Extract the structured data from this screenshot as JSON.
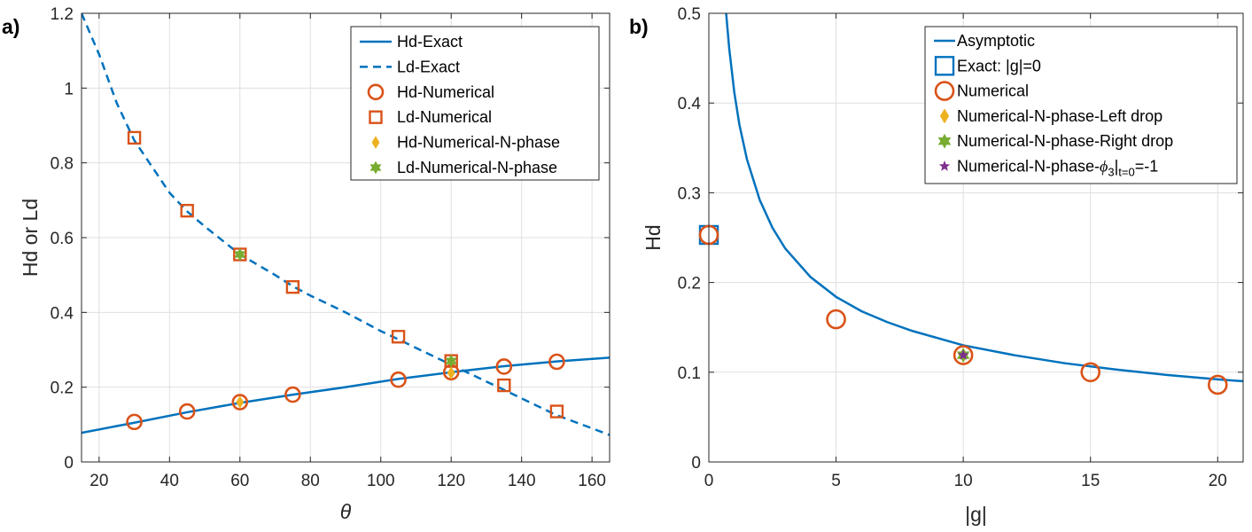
{
  "chart_data": [
    {
      "type": "line",
      "panel_label": "a)",
      "xlabel": "θ",
      "ylabel": "Hd or Ld",
      "xlim": [
        15,
        165
      ],
      "ylim": [
        0,
        1.2
      ],
      "xticks": [
        20,
        40,
        60,
        80,
        100,
        120,
        140,
        160
      ],
      "yticks": [
        0,
        0.2,
        0.4,
        0.6,
        0.8,
        1,
        1.2
      ],
      "xtick_labels": [
        "20",
        "40",
        "60",
        "80",
        "100",
        "120",
        "140",
        "160"
      ],
      "ytick_labels": [
        "0",
        "0.2",
        "0.4",
        "0.6",
        "0.8",
        "1",
        "1.2"
      ],
      "grid": true,
      "legend_position": "top-right",
      "series": [
        {
          "name": "Hd-Exact",
          "style": "solid-line",
          "color": "#0072BD",
          "x": [
            15,
            30,
            45,
            60,
            75,
            90,
            105,
            120,
            135,
            150,
            165
          ],
          "y": [
            0.078,
            0.105,
            0.133,
            0.158,
            0.18,
            0.2,
            0.222,
            0.24,
            0.256,
            0.269,
            0.279
          ]
        },
        {
          "name": "Ld-Exact",
          "style": "dashed-line",
          "color": "#0072BD",
          "x": [
            15,
            20,
            25,
            30,
            40,
            45,
            50,
            60,
            70,
            75,
            80,
            90,
            100,
            105,
            110,
            120,
            130,
            135,
            140,
            150,
            160,
            165
          ],
          "y": [
            1.2,
            1.09,
            0.96,
            0.86,
            0.72,
            0.67,
            0.63,
            0.555,
            0.5,
            0.47,
            0.445,
            0.4,
            0.35,
            0.328,
            0.305,
            0.26,
            0.215,
            0.193,
            0.17,
            0.125,
            0.09,
            0.072
          ]
        },
        {
          "name": "Hd-Numerical",
          "style": "circle",
          "color": "#D95319",
          "x": [
            30,
            45,
            60,
            75,
            105,
            120,
            135,
            150
          ],
          "y": [
            0.107,
            0.135,
            0.16,
            0.18,
            0.22,
            0.24,
            0.255,
            0.268
          ]
        },
        {
          "name": "Ld-Numerical",
          "style": "square",
          "color": "#D95319",
          "x": [
            30,
            45,
            60,
            75,
            105,
            120,
            135,
            150
          ],
          "y": [
            0.867,
            0.672,
            0.555,
            0.468,
            0.335,
            0.27,
            0.205,
            0.135
          ]
        },
        {
          "name": "Hd-Numerical-N-phase",
          "style": "diamond",
          "color": "#EDB120",
          "x": [
            60,
            120
          ],
          "y": [
            0.16,
            0.238
          ]
        },
        {
          "name": "Ld-Numerical-N-phase",
          "style": "hexagram",
          "color": "#77AC30",
          "x": [
            60,
            120
          ],
          "y": [
            0.555,
            0.27
          ]
        }
      ]
    },
    {
      "type": "line",
      "panel_label": "b)",
      "xlabel": "|g|",
      "ylabel": "Hd",
      "xlim": [
        0,
        21
      ],
      "ylim": [
        0,
        0.5
      ],
      "xticks": [
        0,
        5,
        10,
        15,
        20
      ],
      "yticks": [
        0,
        0.1,
        0.2,
        0.3,
        0.4,
        0.5
      ],
      "xtick_labels": [
        "0",
        "5",
        "10",
        "15",
        "20"
      ],
      "ytick_labels": [
        "0",
        "0.1",
        "0.2",
        "0.3",
        "0.4",
        "0.5"
      ],
      "grid": true,
      "legend_position": "top-right",
      "series": [
        {
          "name": "Asymptotic",
          "style": "solid-line",
          "color": "#0072BD",
          "x": [
            0.68,
            0.8,
            1,
            1.2,
            1.5,
            2,
            2.5,
            3,
            4,
            5,
            6,
            7,
            8,
            10,
            12,
            14,
            16,
            18,
            20,
            21
          ],
          "y": [
            0.5,
            0.461,
            0.412,
            0.376,
            0.337,
            0.292,
            0.261,
            0.238,
            0.206,
            0.184,
            0.168,
            0.156,
            0.146,
            0.13,
            0.119,
            0.11,
            0.103,
            0.097,
            0.092,
            0.09
          ]
        },
        {
          "name": "Exact: |g|=0",
          "style": "square",
          "color": "#0072BD",
          "x": [
            0
          ],
          "y": [
            0.253
          ]
        },
        {
          "name": "Numerical",
          "style": "circle",
          "color": "#D95319",
          "x": [
            0,
            5,
            10,
            15,
            20
          ],
          "y": [
            0.253,
            0.159,
            0.119,
            0.1,
            0.086
          ]
        },
        {
          "name": "Numerical-N-phase-Left drop",
          "style": "diamond",
          "color": "#EDB120",
          "x": [
            10
          ],
          "y": [
            0.119
          ]
        },
        {
          "name": "Numerical-N-phase-Right drop",
          "style": "hexagram",
          "color": "#77AC30",
          "x": [
            10
          ],
          "y": [
            0.119
          ]
        },
        {
          "name": "Numerical-N-phase-φ3|t=0=-1",
          "style": "pentagram",
          "color": "#7E2F8E",
          "legend_main": "Numerical-N-phase-",
          "legend_phi": "ϕ",
          "legend_sub": "3",
          "legend_sub2": "t=0",
          "legend_tail": "=-1",
          "x": [
            10
          ],
          "y": [
            0.119
          ]
        }
      ]
    }
  ]
}
